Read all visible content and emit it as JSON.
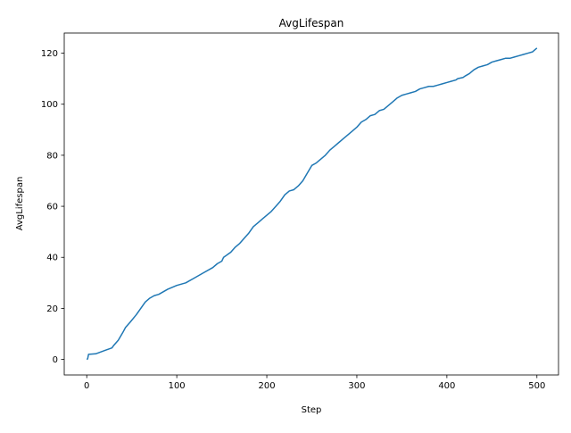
{
  "chart_data": {
    "type": "line",
    "title": "AvgLifespan",
    "xlabel": "Step",
    "ylabel": "AvgLifespan",
    "xlim": [
      -25,
      524
    ],
    "ylim": [
      -6.1,
      127.9
    ],
    "xticks": [
      0,
      100,
      200,
      300,
      400,
      500
    ],
    "yticks": [
      0,
      20,
      40,
      60,
      80,
      100,
      120
    ],
    "grid": false,
    "legend": "none",
    "series": [
      {
        "color": "#1f77b4",
        "x": [
          0,
          1,
          2,
          10,
          20,
          28,
          30,
          35,
          40,
          43,
          48,
          55,
          60,
          65,
          70,
          75,
          80,
          90,
          100,
          110,
          120,
          125,
          130,
          140,
          145,
          150,
          152,
          160,
          165,
          170,
          175,
          180,
          185,
          190,
          195,
          200,
          205,
          210,
          215,
          220,
          225,
          230,
          235,
          240,
          245,
          250,
          255,
          260,
          265,
          270,
          275,
          280,
          285,
          290,
          295,
          300,
          305,
          310,
          315,
          320,
          325,
          330,
          335,
          340,
          345,
          350,
          355,
          360,
          365,
          370,
          375,
          380,
          385,
          390,
          395,
          400,
          405,
          410,
          412,
          418,
          420,
          425,
          430,
          435,
          440,
          445,
          450,
          455,
          460,
          465,
          470,
          475,
          480,
          485,
          490,
          495,
          500
        ],
        "y": [
          0,
          0.2,
          2,
          2.2,
          3.5,
          4.5,
          5.5,
          7.5,
          10.5,
          12.5,
          14.5,
          17.5,
          20,
          22.5,
          24,
          25,
          25.5,
          27.5,
          29,
          30,
          32,
          33,
          34,
          36,
          37.5,
          38.5,
          40,
          42,
          44,
          45.5,
          47.5,
          49.5,
          52,
          53.5,
          55,
          56.5,
          58,
          60,
          62,
          64.5,
          66,
          66.5,
          68,
          70,
          73,
          76,
          77,
          78.5,
          80,
          82,
          83.5,
          85,
          86.5,
          88,
          89.5,
          91,
          93,
          94,
          95.5,
          96,
          97.5,
          98,
          99.5,
          101,
          102.5,
          103.5,
          104,
          104.5,
          105,
          106,
          106.5,
          107,
          107,
          107.5,
          108,
          108.5,
          109,
          109.5,
          110,
          110.5,
          111,
          112,
          113.5,
          114.5,
          115,
          115.5,
          116.5,
          117,
          117.5,
          118,
          118,
          118.5,
          119,
          119.5,
          120,
          120.5,
          122
        ]
      }
    ]
  }
}
